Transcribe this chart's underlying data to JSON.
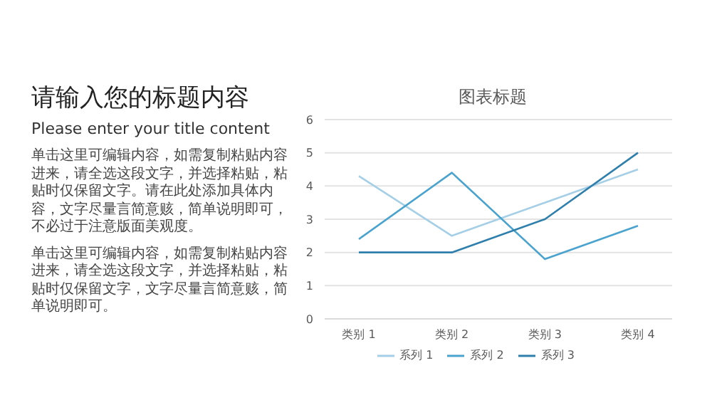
{
  "chart_data": [
    {
      "type": "other",
      "title": "请输入您的标题内容",
      "subtitle": "Please enter your title content",
      "annotations": [
        "单击这里可编辑内容，如需复制粘贴内容进来，请全选这段文字，并选择粘贴，粘贴时仅保留文字。请在此处添加具体内容，文字尽量言简意赅，简单说明即可，不必过于注意版面美观度。",
        "单击这里可编辑内容，如需复制粘贴内容进来，请全选这段文字，并选择粘贴，粘贴时仅保留文字，文字尽量言简意赅，简单说明即可。"
      ]
    },
    {
      "type": "line",
      "title": "图表标题",
      "categories": [
        "类别 1",
        "类别 2",
        "类别 3",
        "类别 4"
      ],
      "series": [
        {
          "name": "系列 1",
          "color": "#a5cfe6",
          "values": [
            4.3,
            2.5,
            3.5,
            4.5
          ]
        },
        {
          "name": "系列 2",
          "color": "#4aa3cf",
          "values": [
            2.4,
            4.4,
            1.8,
            2.8
          ]
        },
        {
          "name": "系列 3",
          "color": "#2f7fad",
          "values": [
            2,
            2,
            3,
            5
          ]
        }
      ],
      "ylim": [
        0,
        6
      ],
      "yticks": [
        0,
        1,
        2,
        3,
        4,
        5,
        6
      ],
      "grid": "y",
      "legend": "bottom",
      "marker": "none"
    }
  ]
}
